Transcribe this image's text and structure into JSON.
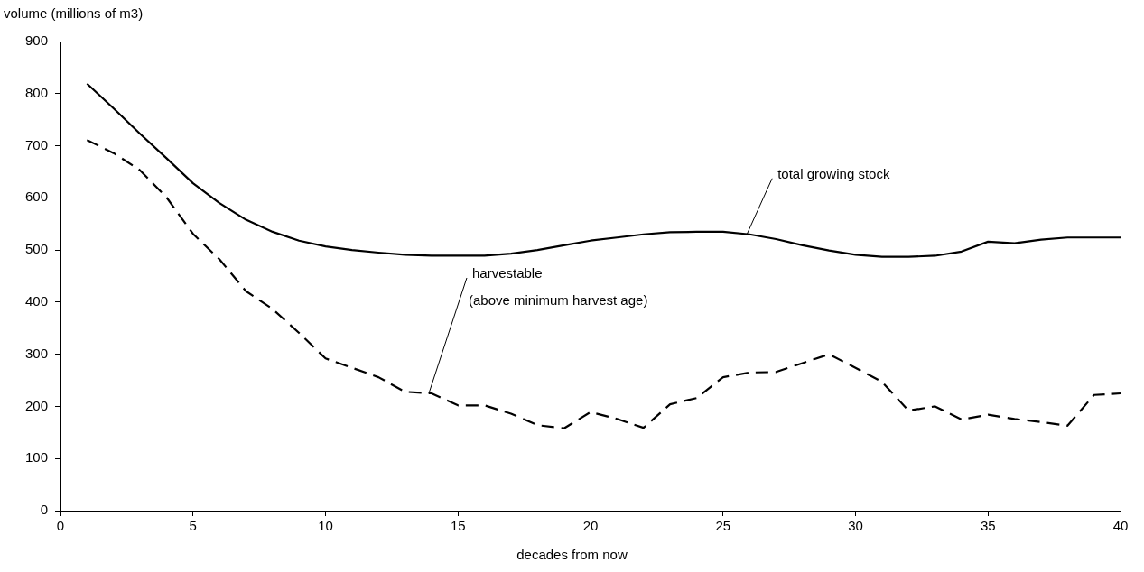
{
  "chart_data": {
    "type": "line",
    "xlabel": "decades from now",
    "ylabel": "volume (millions of m3)",
    "x": [
      1,
      2,
      3,
      4,
      5,
      6,
      7,
      8,
      9,
      10,
      11,
      12,
      13,
      14,
      15,
      16,
      17,
      18,
      19,
      20,
      21,
      22,
      23,
      24,
      25,
      26,
      27,
      28,
      29,
      30,
      31,
      32,
      33,
      34,
      35,
      36,
      37,
      38,
      39,
      40
    ],
    "series": [
      {
        "color": "#000000",
        "line_style": "solid",
        "values": [
          819,
          772,
          723,
          676,
          628,
          590,
          558,
          535,
          518,
          507,
          500,
          495,
          491,
          489,
          489,
          489,
          493,
          500,
          509,
          518,
          524,
          530,
          534,
          535,
          535,
          530,
          521,
          509,
          499,
          491,
          487,
          487,
          489,
          497,
          516,
          513,
          520,
          524,
          524,
          524
        ]
      },
      {
        "color": "#000000",
        "line_style": "dashed",
        "values": [
          711,
          686,
          653,
          601,
          531,
          482,
          421,
          387,
          341,
          292,
          274,
          256,
          228,
          225,
          202,
          202,
          186,
          164,
          158,
          189,
          176,
          159,
          204,
          216,
          256,
          265,
          266,
          283,
          300,
          274,
          247,
          192,
          200,
          175,
          184,
          176,
          170,
          163,
          222,
          225
        ]
      }
    ],
    "xlim": [
      0,
      40
    ],
    "xticks": [
      0,
      5,
      10,
      15,
      20,
      25,
      30,
      35,
      40
    ],
    "ylim": [
      0,
      900
    ],
    "yticks": [
      0,
      100,
      200,
      300,
      400,
      500,
      600,
      700,
      800,
      900
    ],
    "grid": false,
    "legend": false,
    "marker": "none",
    "annotations": [
      {
        "text": "total growing stock",
        "x": 25.9,
        "y": 530
      },
      {
        "text": "harvestable\n(above minimum harvest age)",
        "x": 13.9,
        "y": 225
      }
    ]
  }
}
